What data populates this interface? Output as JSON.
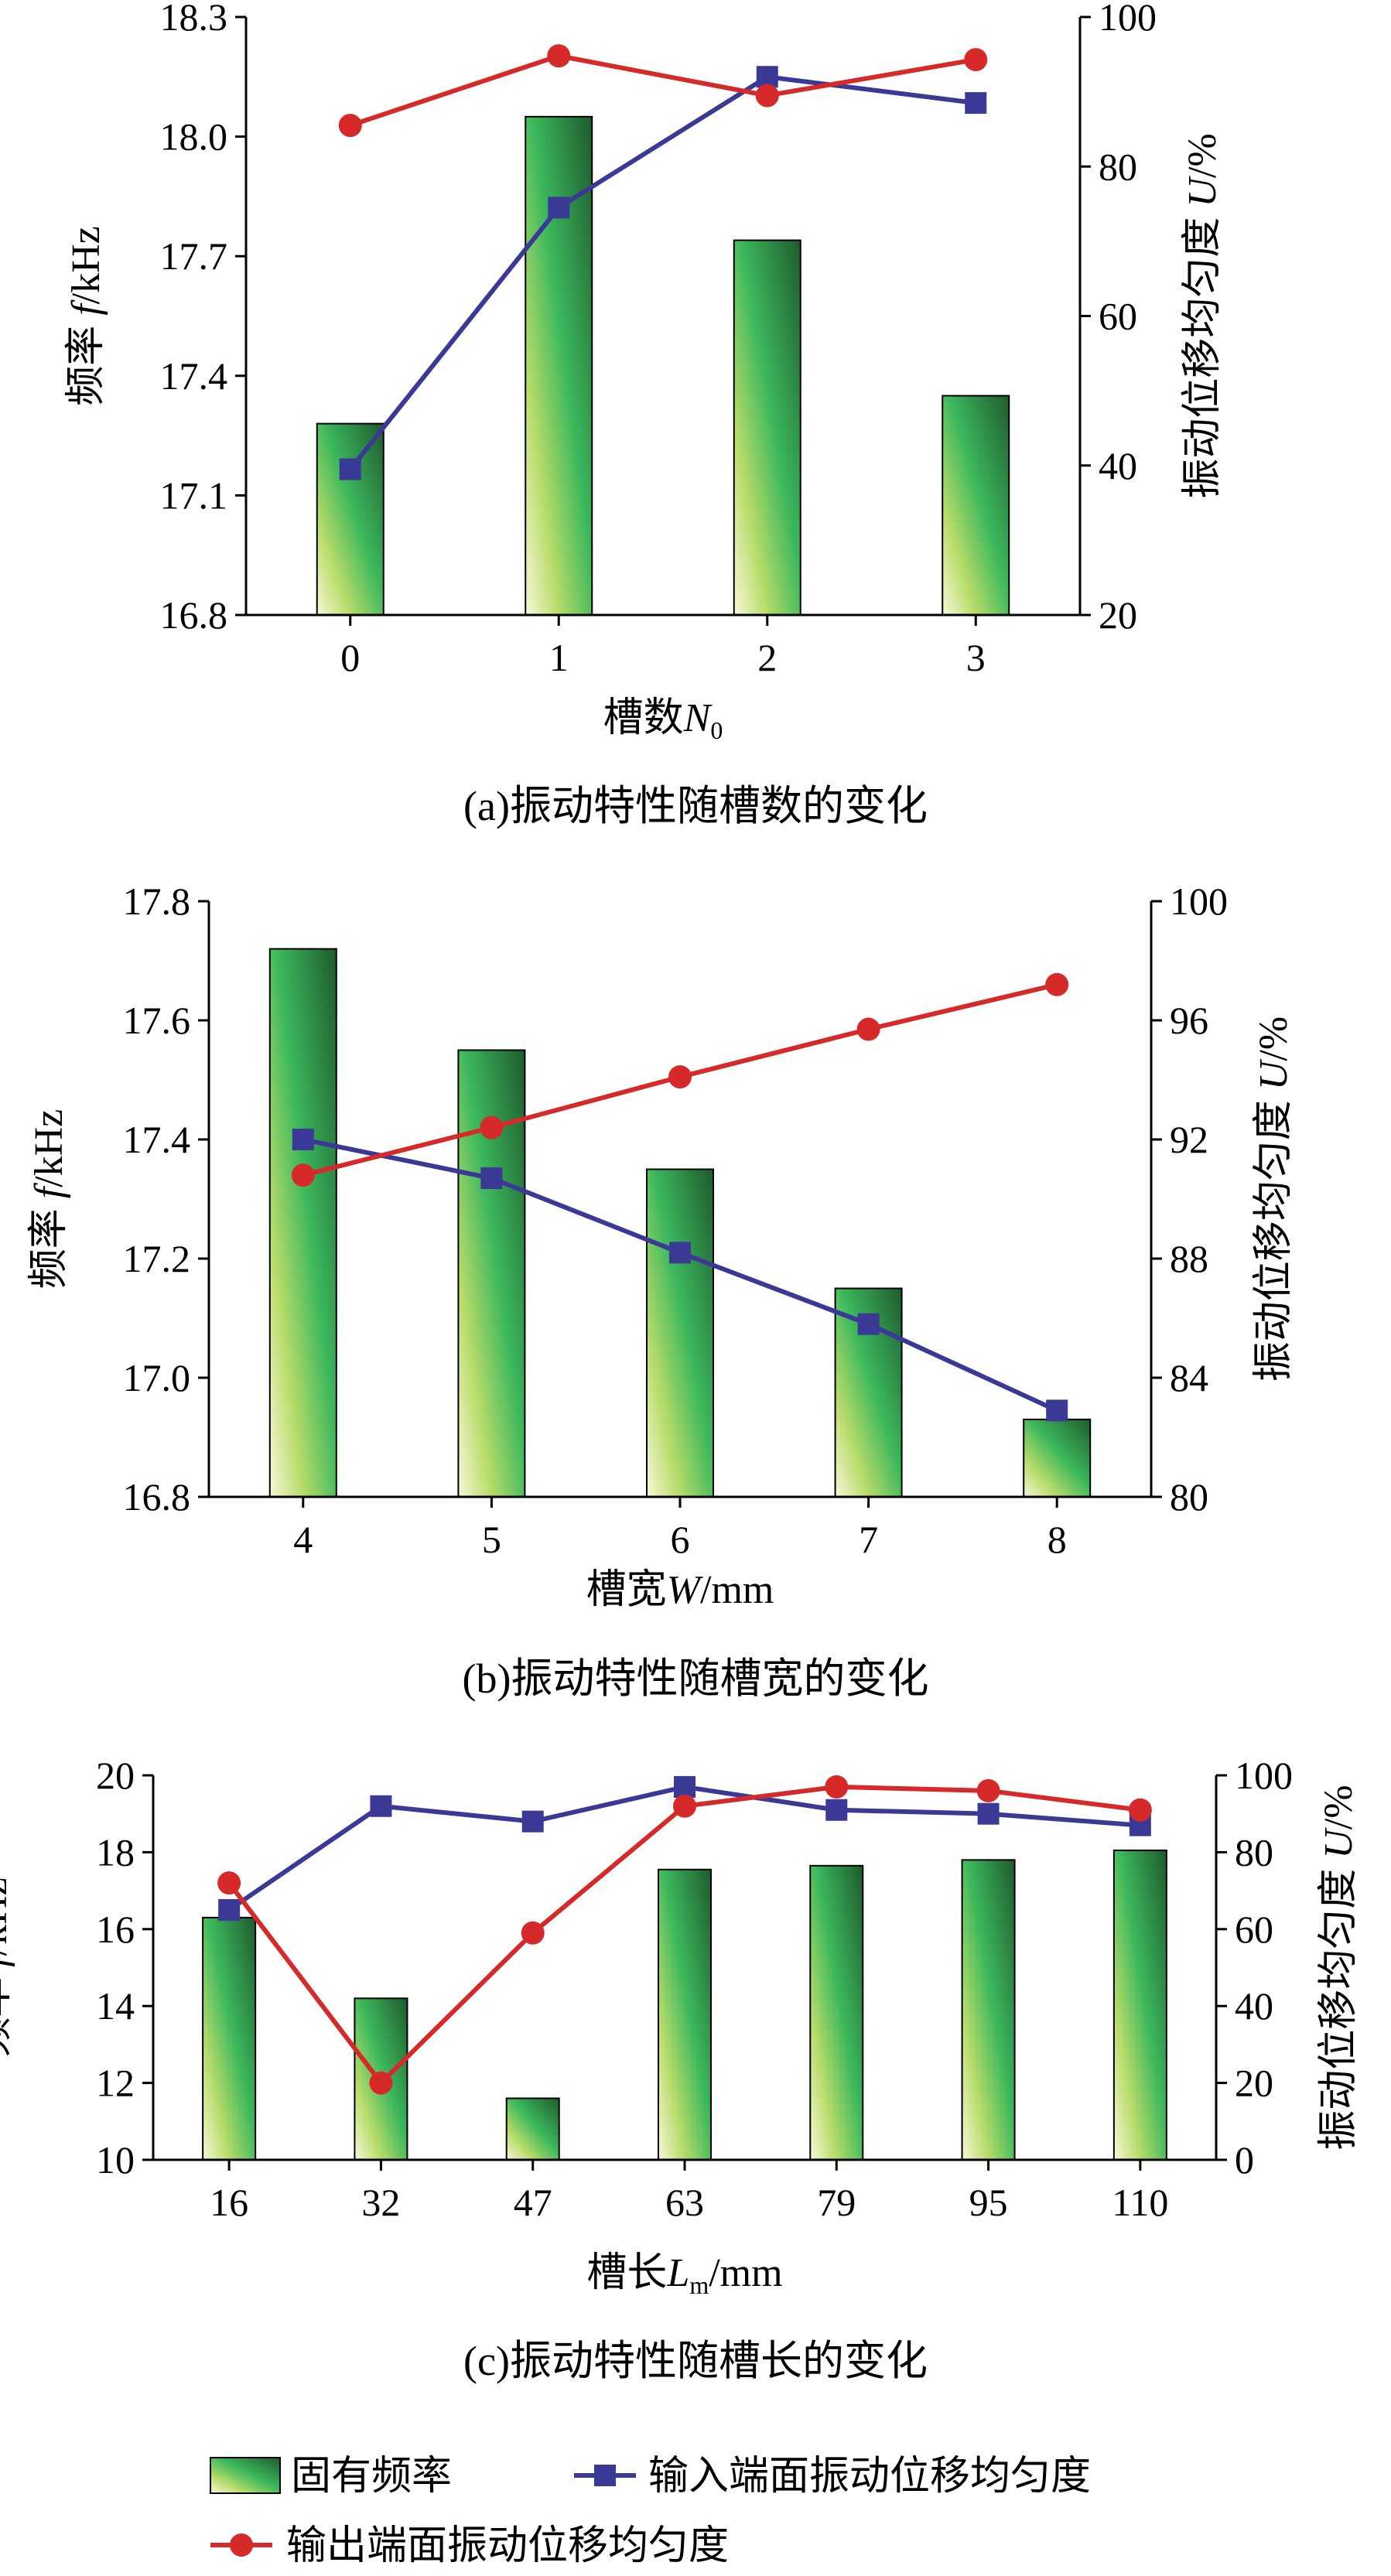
{
  "colors": {
    "bar_dark": "#1e5a2e",
    "bar_mid": "#3cb85c",
    "bar_light": "#f5f5c8",
    "input_series": "#3a3a96",
    "output_series": "#d62a2a",
    "axis": "#000000"
  },
  "chart_data": [
    {
      "type": "bar+line",
      "caption": "(a)振动特性随槽数的变化",
      "xlabel": {
        "text": "槽数",
        "var": "N",
        "sub": "0",
        "unit": ""
      },
      "ylabel_left": {
        "text": "频率 ",
        "var": "f",
        "unit": "/kHz"
      },
      "ylabel_right": {
        "text": "振动位移均匀度 ",
        "var": "U",
        "unit": "/%"
      },
      "categories": [
        "0",
        "1",
        "2",
        "3"
      ],
      "ylim_left": [
        16.8,
        18.3
      ],
      "yticks_left": [
        16.8,
        17.1,
        17.4,
        17.7,
        18.0,
        18.3
      ],
      "yticks_left_labels": [
        "16.8",
        "17.1",
        "17.4",
        "17.7",
        "18.0",
        "18.3"
      ],
      "ylim_right": [
        20,
        100
      ],
      "yticks_right": [
        20,
        40,
        60,
        80,
        100
      ],
      "yticks_right_labels": [
        "20",
        "40",
        "60",
        "80",
        "100"
      ],
      "bars": {
        "name": "固有频率",
        "values": [
          17.28,
          18.05,
          17.74,
          17.35
        ]
      },
      "series": [
        {
          "name": "输入端面振动位移均匀度",
          "marker": "square",
          "values": [
            39.5,
            74.5,
            92.0,
            88.5
          ]
        },
        {
          "name": "输出端面振动位移均匀度",
          "marker": "circle",
          "values": [
            85.5,
            94.8,
            89.5,
            94.3
          ]
        }
      ]
    },
    {
      "type": "bar+line",
      "caption": "(b)振动特性随槽宽的变化",
      "xlabel": {
        "text": "槽宽",
        "var": "W",
        "sub": "",
        "unit": "/mm"
      },
      "ylabel_left": {
        "text": "频率 ",
        "var": "f",
        "unit": "/kHz"
      },
      "ylabel_right": {
        "text": "振动位移均匀度 ",
        "var": "U",
        "unit": "/%"
      },
      "categories": [
        "4",
        "5",
        "6",
        "7",
        "8"
      ],
      "ylim_left": [
        16.8,
        17.8
      ],
      "yticks_left": [
        16.8,
        17.0,
        17.2,
        17.4,
        17.6,
        17.8
      ],
      "yticks_left_labels": [
        "16.8",
        "17.0",
        "17.2",
        "17.4",
        "17.6",
        "17.8"
      ],
      "ylim_right": [
        80,
        100
      ],
      "yticks_right": [
        80,
        84,
        88,
        92,
        96,
        100
      ],
      "yticks_right_labels": [
        "80",
        "84",
        "88",
        "92",
        "96",
        "100"
      ],
      "bars": {
        "name": "固有频率",
        "values": [
          17.72,
          17.55,
          17.35,
          17.15,
          16.93
        ]
      },
      "series": [
        {
          "name": "输入端面振动位移均匀度",
          "marker": "square",
          "values": [
            92.0,
            90.7,
            88.2,
            85.8,
            82.9
          ]
        },
        {
          "name": "输出端面振动位移均匀度",
          "marker": "circle",
          "values": [
            90.8,
            92.4,
            94.1,
            95.7,
            97.2
          ]
        }
      ]
    },
    {
      "type": "bar+line",
      "caption": "(c)振动特性随槽长的变化",
      "xlabel": {
        "text": "槽长",
        "var": "L",
        "sub": "m",
        "unit": "/mm"
      },
      "ylabel_left": {
        "text": "频率 ",
        "var": "f",
        "unit": "/kHz"
      },
      "ylabel_right": {
        "text": "振动位移均匀度 ",
        "var": "U",
        "unit": "/%"
      },
      "categories": [
        "16",
        "32",
        "47",
        "63",
        "79",
        "95",
        "110"
      ],
      "ylim_left": [
        10,
        20
      ],
      "yticks_left": [
        10,
        12,
        14,
        16,
        18,
        20
      ],
      "yticks_left_labels": [
        "10",
        "12",
        "14",
        "16",
        "18",
        "20"
      ],
      "ylim_right": [
        0,
        100
      ],
      "yticks_right": [
        0,
        20,
        40,
        60,
        80,
        100
      ],
      "yticks_right_labels": [
        "0",
        "20",
        "40",
        "60",
        "80",
        "100"
      ],
      "bars": {
        "name": "固有频率",
        "values": [
          16.3,
          14.2,
          11.6,
          17.55,
          17.65,
          17.8,
          18.05
        ]
      },
      "series": [
        {
          "name": "输入端面振动位移均匀度",
          "marker": "square",
          "values": [
            65,
            92,
            88,
            97,
            91,
            90,
            87
          ]
        },
        {
          "name": "输出端面振动位移均匀度",
          "marker": "circle",
          "values": [
            72,
            20,
            59,
            92,
            97,
            96,
            91
          ]
        }
      ]
    }
  ],
  "legend": {
    "items": [
      {
        "label": "固有频率",
        "kind": "bar"
      },
      {
        "label": "输入端面振动位移均匀度",
        "kind": "square"
      },
      {
        "label": "输出端面振动位移均匀度",
        "kind": "circle"
      }
    ]
  }
}
